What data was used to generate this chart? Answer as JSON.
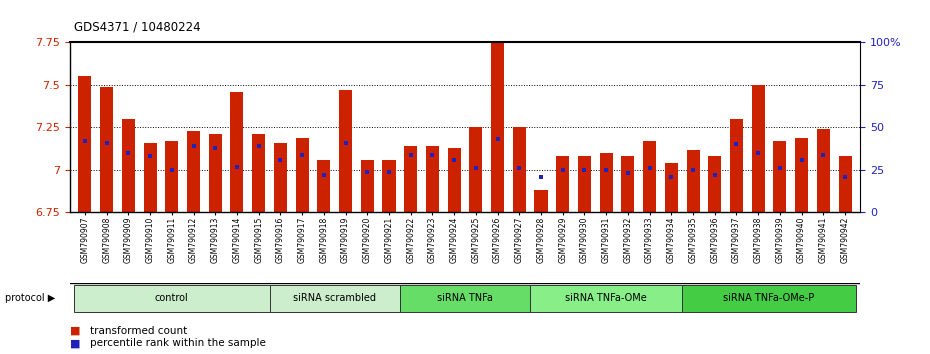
{
  "title": "GDS4371 / 10480224",
  "samples": [
    "GSM790907",
    "GSM790908",
    "GSM790909",
    "GSM790910",
    "GSM790911",
    "GSM790912",
    "GSM790913",
    "GSM790914",
    "GSM790915",
    "GSM790916",
    "GSM790917",
    "GSM790918",
    "GSM790919",
    "GSM790920",
    "GSM790921",
    "GSM790922",
    "GSM790923",
    "GSM790924",
    "GSM790925",
    "GSM790926",
    "GSM790927",
    "GSM790928",
    "GSM790929",
    "GSM790930",
    "GSM790931",
    "GSM790932",
    "GSM790933",
    "GSM790934",
    "GSM790935",
    "GSM790936",
    "GSM790937",
    "GSM790938",
    "GSM790939",
    "GSM790940",
    "GSM790941",
    "GSM790942"
  ],
  "red_values": [
    7.55,
    7.49,
    7.3,
    7.16,
    7.17,
    7.23,
    7.21,
    7.46,
    7.21,
    7.16,
    7.19,
    7.06,
    7.47,
    7.06,
    7.06,
    7.14,
    7.14,
    7.13,
    7.25,
    7.75,
    7.25,
    6.88,
    7.08,
    7.08,
    7.1,
    7.08,
    7.17,
    7.04,
    7.12,
    7.08,
    7.3,
    7.5,
    7.17,
    7.19,
    7.24,
    7.08
  ],
  "blue_values": [
    7.17,
    7.16,
    7.1,
    7.08,
    7.0,
    7.14,
    7.13,
    7.02,
    7.14,
    7.06,
    7.09,
    6.97,
    7.16,
    6.99,
    6.99,
    7.09,
    7.09,
    7.06,
    7.01,
    7.18,
    7.01,
    6.96,
    7.0,
    7.0,
    7.0,
    6.98,
    7.01,
    6.96,
    7.0,
    6.97,
    7.15,
    7.1,
    7.01,
    7.06,
    7.09,
    6.96
  ],
  "ymin": 6.75,
  "ymax": 7.75,
  "yticks": [
    6.75,
    7.0,
    7.25,
    7.5,
    7.75
  ],
  "ytick_labels": [
    "6.75",
    "7",
    "7.25",
    "7.5",
    "7.75"
  ],
  "right_yticks": [
    0,
    25,
    50,
    75,
    100
  ],
  "right_ytick_labels": [
    "0",
    "25",
    "50",
    "75",
    "100%"
  ],
  "bar_color": "#CC2200",
  "blue_color": "#2222BB",
  "groups": [
    {
      "label": "control",
      "start": 0,
      "end": 8,
      "color": "#CCEECC"
    },
    {
      "label": "siRNA scrambled",
      "start": 9,
      "end": 14,
      "color": "#CCEECC"
    },
    {
      "label": "siRNA TNFa",
      "start": 15,
      "end": 20,
      "color": "#66DD66"
    },
    {
      "label": "siRNA TNFa-OMe",
      "start": 21,
      "end": 27,
      "color": "#88EE88"
    },
    {
      "label": "siRNA TNFa-OMe-P",
      "start": 28,
      "end": 35,
      "color": "#44CC44"
    }
  ],
  "legend_red": "transformed count",
  "legend_blue": "percentile rank within the sample",
  "protocol_label": "protocol"
}
